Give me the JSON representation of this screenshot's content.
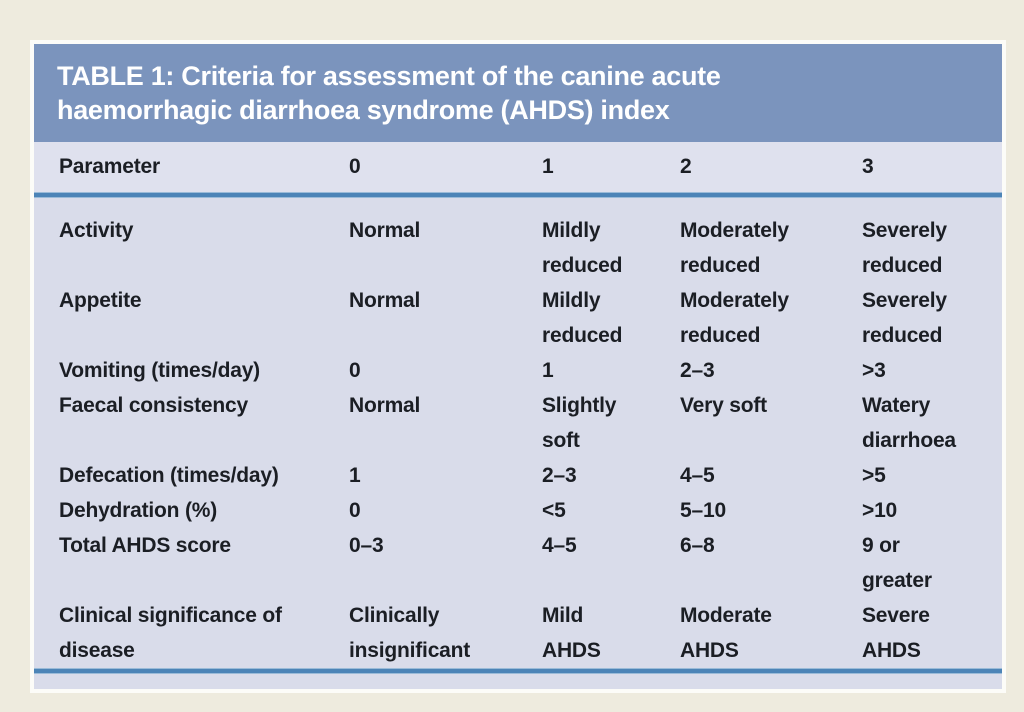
{
  "page": {
    "background": "#eeebde"
  },
  "table": {
    "title": "TABLE 1: Criteria for assessment of the canine acute\nhaemorrhagic diarrhoea syndrome (AHDS) index",
    "columns": [
      "Parameter",
      "0",
      "1",
      "2",
      "3"
    ],
    "rows": [
      {
        "cells": [
          "Activity",
          "Normal",
          "Mildly\nreduced",
          "Moderately\nreduced",
          "Severely\nreduced"
        ]
      },
      {
        "cells": [
          "Appetite",
          "Normal",
          "Mildly\nreduced",
          "Moderately\nreduced",
          "Severely\nreduced"
        ]
      },
      {
        "cells": [
          "Vomiting (times/day)",
          "0",
          "1",
          "2–3",
          ">3"
        ]
      },
      {
        "cells": [
          "Faecal consistency",
          "Normal",
          "Slightly\nsoft",
          "Very soft",
          "Watery\ndiarrhoea"
        ]
      },
      {
        "cells": [
          "Defecation (times/day)",
          "1",
          "2–3",
          "4–5",
          ">5"
        ]
      },
      {
        "cells": [
          "Dehydration (%)",
          "0",
          "<5",
          "5–10",
          ">10"
        ]
      },
      {
        "cells": [
          "Total AHDS score",
          "0–3",
          "4–5",
          "6–8",
          "9 or\ngreater"
        ]
      },
      {
        "cells": [
          "Clinical significance of\ndisease",
          "Clinically\ninsignificant",
          "Mild\nAHDS",
          "Moderate\nAHDS",
          "Severe\nAHDS"
        ]
      }
    ],
    "colors": {
      "page_bg": "#eeebde",
      "header_bg": "#7b94bd",
      "header_text": "#ffffff",
      "param_row_bg": "#dfe1ee",
      "body_bg": "#d9dcea",
      "rule_blue": "#4c84b7",
      "text": "#1b1e24",
      "panel_border": "#fcfcf8"
    }
  }
}
